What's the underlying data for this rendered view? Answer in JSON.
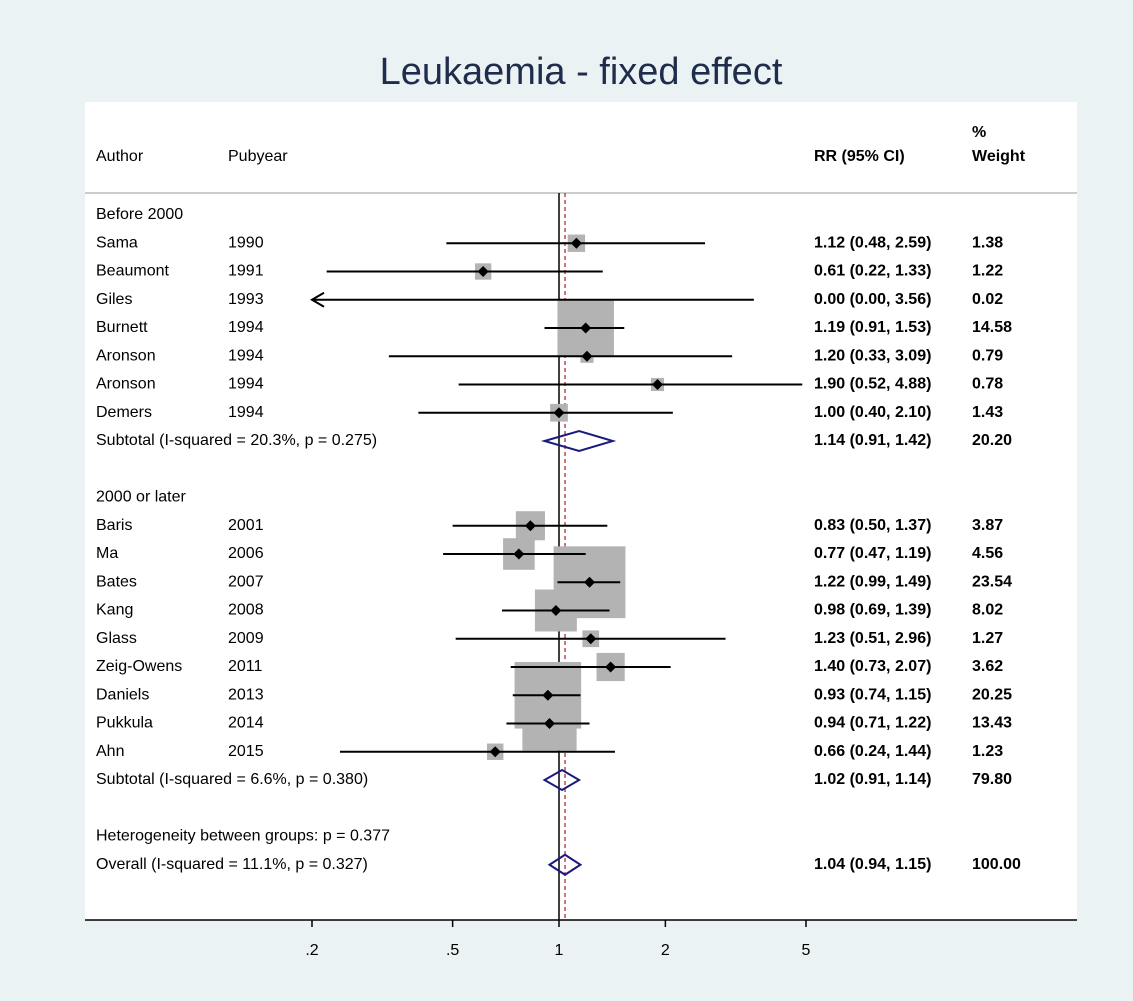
{
  "chart_data": {
    "type": "forest",
    "title": "Leukaemia - fixed effect",
    "headers": {
      "author": "Author",
      "pubyear": "Pubyear",
      "effect": "RR (95% CI)",
      "weight_top": "%",
      "weight": "Weight"
    },
    "log_scale": true,
    "xlim": [
      0.2,
      5
    ],
    "xticks": [
      {
        "value": 0.2,
        "label": ".2"
      },
      {
        "value": 0.5,
        "label": ".5"
      },
      1,
      2,
      5
    ],
    "groups": [
      {
        "label": "Before 2000",
        "studies": [
          {
            "author": "Sama",
            "year": "1990",
            "estimate": 1.12,
            "lower": 0.48,
            "upper": 2.59,
            "weight": 1.38,
            "ci_label": "1.12 (0.48, 2.59)"
          },
          {
            "author": "Beaumont",
            "year": "1991",
            "estimate": 0.61,
            "lower": 0.22,
            "upper": 1.33,
            "weight": 1.22,
            "ci_label": "0.61 (0.22, 1.33)"
          },
          {
            "author": "Giles",
            "year": "1993",
            "estimate": 0,
            "lower": 0,
            "upper": 3.56,
            "weight": 0.02,
            "ci_label": "0.00 (0.00, 3.56)"
          },
          {
            "author": "Burnett",
            "year": "1994",
            "estimate": 1.19,
            "lower": 0.91,
            "upper": 1.53,
            "weight": 14.58,
            "ci_label": "1.19 (0.91, 1.53)"
          },
          {
            "author": "Aronson",
            "year": "1994",
            "estimate": 1.2,
            "lower": 0.33,
            "upper": 3.09,
            "weight": 0.79,
            "ci_label": "1.20 (0.33, 3.09)"
          },
          {
            "author": "Aronson",
            "year": "1994",
            "estimate": 1.9,
            "lower": 0.52,
            "upper": 4.88,
            "weight": 0.78,
            "ci_label": "1.90 (0.52, 4.88)"
          },
          {
            "author": "Demers",
            "year": "1994",
            "estimate": 1,
            "lower": 0.4,
            "upper": 2.1,
            "weight": 1.43,
            "ci_label": "1.00 (0.40, 2.10)"
          }
        ],
        "subtotal": {
          "label": "Subtotal  (I-squared = 20.3%, p = 0.275)",
          "estimate": 1.14,
          "lower": 0.91,
          "upper": 1.42,
          "weight_label": "20.20",
          "ci_label": "1.14 (0.91, 1.42)"
        }
      },
      {
        "label": "2000 or later",
        "studies": [
          {
            "author": "Baris",
            "year": "2001",
            "estimate": 0.83,
            "lower": 0.5,
            "upper": 1.37,
            "weight": 3.87,
            "ci_label": "0.83 (0.50, 1.37)"
          },
          {
            "author": "Ma",
            "year": "2006",
            "estimate": 0.77,
            "lower": 0.47,
            "upper": 1.19,
            "weight": 4.56,
            "ci_label": "0.77 (0.47, 1.19)"
          },
          {
            "author": "Bates",
            "year": "2007",
            "estimate": 1.22,
            "lower": 0.99,
            "upper": 1.49,
            "weight": 23.54,
            "ci_label": "1.22 (0.99, 1.49)"
          },
          {
            "author": "Kang",
            "year": "2008",
            "estimate": 0.98,
            "lower": 0.69,
            "upper": 1.39,
            "weight": 8.02,
            "ci_label": "0.98 (0.69, 1.39)"
          },
          {
            "author": "Glass",
            "year": "2009",
            "estimate": 1.23,
            "lower": 0.51,
            "upper": 2.96,
            "weight": 1.27,
            "ci_label": "1.23 (0.51, 2.96)"
          },
          {
            "author": "Zeig-Owens",
            "year": "2011",
            "estimate": 1.4,
            "lower": 0.73,
            "upper": 2.07,
            "weight": 3.62,
            "ci_label": "1.40 (0.73, 2.07)"
          },
          {
            "author": "Daniels",
            "year": "2013",
            "estimate": 0.93,
            "lower": 0.74,
            "upper": 1.15,
            "weight": 20.25,
            "ci_label": "0.93 (0.74, 1.15)"
          },
          {
            "author": "Pukkula",
            "year": "2014",
            "estimate": 0.94,
            "lower": 0.71,
            "upper": 1.22,
            "weight": 13.43,
            "ci_label": "0.94 (0.71, 1.22)"
          },
          {
            "author": "Ahn",
            "year": "2015",
            "estimate": 0.66,
            "lower": 0.24,
            "upper": 1.44,
            "weight": 1.23,
            "ci_label": "0.66 (0.24, 1.44)"
          }
        ],
        "subtotal": {
          "label": "Subtotal  (I-squared = 6.6%, p = 0.380)",
          "estimate": 1.02,
          "lower": 0.91,
          "upper": 1.14,
          "weight_label": "79.80",
          "ci_label": "1.02 (0.91, 1.14)"
        }
      }
    ],
    "heterogeneity": "Heterogeneity between groups: p = 0.377",
    "overall": {
      "label": "Overall  (I-squared = 11.1%, p = 0.327)",
      "estimate": 1.04,
      "lower": 0.94,
      "upper": 1.15,
      "weight_label": "100.00",
      "ci_label": "1.04 (0.94, 1.15)"
    },
    "box_color": "#b3b3b3",
    "diamond_color": "#1a1a80",
    "overall_line_color": "#b03030"
  }
}
